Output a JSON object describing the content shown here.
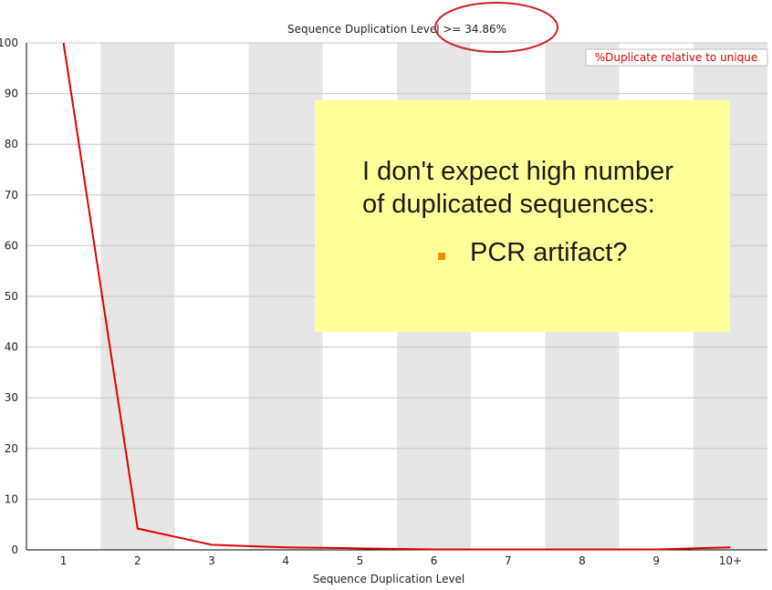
{
  "chart_data": {
    "type": "line",
    "title": "Sequence Duplication Level >= 34.86%",
    "xlabel": "Sequence Duplication Level",
    "ylabel": "",
    "categories": [
      "1",
      "2",
      "3",
      "4",
      "5",
      "6",
      "7",
      "8",
      "9",
      "10+"
    ],
    "ylim": [
      0,
      100
    ],
    "yticks": [
      0,
      10,
      20,
      30,
      40,
      50,
      60,
      70,
      80,
      90,
      100
    ],
    "series": [
      {
        "name": "%Duplicate relative to unique",
        "color": "#dd0000",
        "values": [
          100,
          4.2,
          1.0,
          0.5,
          0.3,
          0.1,
          0.1,
          0.1,
          0.1,
          0.5
        ]
      }
    ],
    "grid": true,
    "alternating_bands": true,
    "legend_position": "top-right",
    "highlight_annotation": "ellipse around \">= 34.86%\""
  },
  "callout": {
    "line1": "I don't expect high number",
    "line2": "of duplicated sequences:",
    "bullet": "PCR artifact?",
    "bullet_color": "#ff8c00"
  },
  "colors": {
    "band": "#e6e6e6",
    "grid": "#c8c8c8",
    "line": "#dd0000",
    "annotation": "#cc2222",
    "callout_bg": "#ffff99"
  }
}
